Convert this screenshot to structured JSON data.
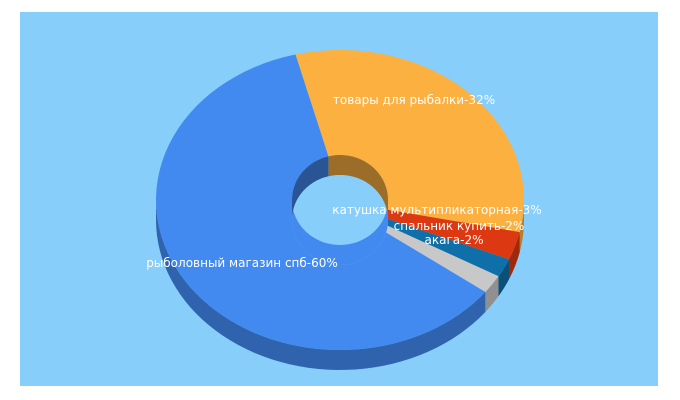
{
  "chart_data": {
    "type": "pie",
    "variant": "3d-donut",
    "legend": "none",
    "background_color": "#87cefa",
    "slices": [
      {
        "label": "товары для рыбалки",
        "value": 32,
        "text": "товары для рыбалки-32%",
        "color": "#fbb040"
      },
      {
        "label": "катушка мультипликаторная",
        "value": 3,
        "text": "катушка мультипликаторная-3%",
        "color": "#dc3912"
      },
      {
        "label": "спальник купить",
        "value": 2,
        "text": "спальник купить-2%",
        "color": "#0f6fa8"
      },
      {
        "label": "акага",
        "value": 2,
        "text": "акага-2%",
        "color": "#c8c8c8"
      },
      {
        "label": "рыболовный магазин спб",
        "value": 60,
        "text": "рыболовный магазин спб-60%",
        "color": "#4289f0"
      }
    ]
  }
}
